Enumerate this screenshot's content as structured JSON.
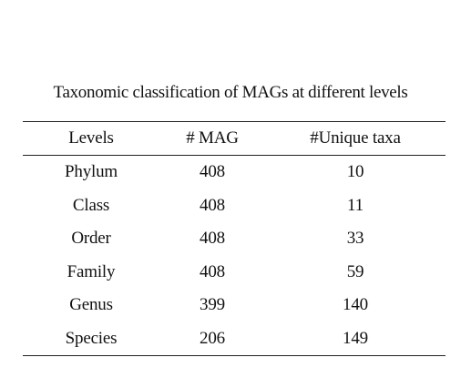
{
  "table": {
    "caption": "Taxonomic classification of MAGs at different levels",
    "headers": [
      "Levels",
      "# MAG",
      "#Unique taxa"
    ],
    "rows": [
      [
        "Phylum",
        "408",
        "10"
      ],
      [
        "Class",
        "408",
        "11"
      ],
      [
        "Order",
        "408",
        "33"
      ],
      [
        "Family",
        "408",
        "59"
      ],
      [
        "Genus",
        "399",
        "140"
      ],
      [
        "Species",
        "206",
        "149"
      ]
    ]
  }
}
